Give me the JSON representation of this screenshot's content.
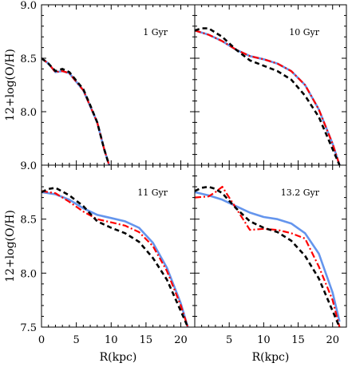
{
  "chart_data": [
    {
      "type": "line",
      "panel_label": "1 Gyr",
      "xlim": [
        0,
        22
      ],
      "ylim": [
        7.5,
        9.0
      ],
      "ylabel": "12+log(O/H)",
      "ytick_labels": [
        "9.0",
        "8.5",
        "8.0"
      ],
      "series": [
        {
          "style": "solid",
          "color": "#6495ed",
          "x": [
            0,
            1,
            2,
            3,
            4,
            5,
            6,
            7,
            8,
            9,
            9.7
          ],
          "y": [
            8.5,
            8.45,
            8.37,
            8.38,
            8.36,
            8.28,
            8.2,
            8.05,
            7.9,
            7.65,
            7.5
          ]
        },
        {
          "style": "dashdot",
          "color": "#ff0000",
          "x": [
            0,
            1,
            2,
            3,
            4,
            5,
            6,
            7,
            8,
            9,
            9.7
          ],
          "y": [
            8.5,
            8.45,
            8.37,
            8.38,
            8.36,
            8.28,
            8.2,
            8.05,
            7.9,
            7.65,
            7.5
          ]
        },
        {
          "style": "dashed",
          "color": "#000000",
          "x": [
            0,
            1,
            2,
            3,
            4,
            5,
            6,
            7,
            8,
            9,
            9.7
          ],
          "y": [
            8.5,
            8.45,
            8.38,
            8.4,
            8.37,
            8.29,
            8.21,
            8.06,
            7.9,
            7.65,
            7.5
          ]
        }
      ]
    },
    {
      "type": "line",
      "panel_label": "10 Gyr",
      "xlim": [
        0,
        22
      ],
      "ylim": [
        7.5,
        9.0
      ],
      "series": [
        {
          "style": "solid",
          "color": "#6495ed",
          "x": [
            0,
            2,
            4,
            6,
            8,
            10,
            12,
            14,
            16,
            18,
            20,
            21
          ],
          "y": [
            8.76,
            8.72,
            8.66,
            8.58,
            8.52,
            8.49,
            8.45,
            8.38,
            8.25,
            8.02,
            7.7,
            7.5
          ]
        },
        {
          "style": "dashdot",
          "color": "#ff0000",
          "x": [
            0,
            2,
            4,
            6,
            8,
            10,
            12,
            14,
            16,
            18,
            20,
            21
          ],
          "y": [
            8.76,
            8.72,
            8.66,
            8.58,
            8.52,
            8.49,
            8.45,
            8.38,
            8.25,
            8.02,
            7.7,
            7.5
          ]
        },
        {
          "style": "dashed",
          "color": "#000000",
          "x": [
            0,
            1,
            2,
            4,
            6,
            8,
            10,
            12,
            14,
            16,
            18,
            20,
            21
          ],
          "y": [
            8.76,
            8.78,
            8.78,
            8.7,
            8.58,
            8.48,
            8.43,
            8.38,
            8.3,
            8.15,
            7.95,
            7.65,
            7.5
          ]
        }
      ]
    },
    {
      "type": "line",
      "panel_label": "11 Gyr",
      "xlim": [
        0,
        22
      ],
      "ylim": [
        7.5,
        9.0
      ],
      "xlabel": "R(kpc)",
      "ylabel": "12+log(O/H)",
      "xtick_labels": [
        "0",
        "5",
        "10",
        "15",
        "20"
      ],
      "ytick_labels": [
        "9.0",
        "8.5",
        "8.0",
        "7.5"
      ],
      "series": [
        {
          "style": "solid",
          "color": "#6495ed",
          "x": [
            0,
            2,
            4,
            6,
            8,
            10,
            12,
            14,
            16,
            18,
            20,
            21
          ],
          "y": [
            8.75,
            8.73,
            8.68,
            8.6,
            8.54,
            8.51,
            8.48,
            8.42,
            8.28,
            8.05,
            7.72,
            7.5
          ]
        },
        {
          "style": "dashdot",
          "color": "#ff0000",
          "x": [
            0,
            2,
            4,
            6,
            8,
            10,
            12,
            14,
            16,
            18,
            20,
            21
          ],
          "y": [
            8.76,
            8.74,
            8.66,
            8.57,
            8.5,
            8.47,
            8.44,
            8.38,
            8.25,
            8.02,
            7.7,
            7.5
          ]
        },
        {
          "style": "dashed",
          "color": "#000000",
          "x": [
            0,
            1,
            2,
            4,
            6,
            7,
            8,
            10,
            12,
            14,
            16,
            18,
            20,
            21
          ],
          "y": [
            8.75,
            8.78,
            8.79,
            8.72,
            8.62,
            8.55,
            8.48,
            8.42,
            8.37,
            8.29,
            8.14,
            7.94,
            7.65,
            7.5
          ]
        }
      ]
    },
    {
      "type": "line",
      "panel_label": "13.2 Gyr",
      "xlim": [
        0,
        22
      ],
      "ylim": [
        7.5,
        9.0
      ],
      "xlabel": "R(kpc)",
      "xtick_labels": [
        "5",
        "10",
        "15",
        "20"
      ],
      "series": [
        {
          "style": "solid",
          "color": "#6495ed",
          "x": [
            0,
            2,
            4,
            6,
            8,
            10,
            12,
            14,
            16,
            18,
            20,
            21
          ],
          "y": [
            8.75,
            8.72,
            8.68,
            8.62,
            8.56,
            8.52,
            8.5,
            8.46,
            8.37,
            8.18,
            7.82,
            7.55
          ]
        },
        {
          "style": "dashdot",
          "color": "#ff0000",
          "x": [
            0,
            2,
            3,
            4,
            6,
            7,
            8,
            10,
            12,
            14,
            16,
            18,
            20,
            21
          ],
          "y": [
            8.7,
            8.71,
            8.75,
            8.8,
            8.6,
            8.5,
            8.4,
            8.41,
            8.4,
            8.37,
            8.32,
            8.06,
            7.75,
            7.5
          ]
        },
        {
          "style": "dashed",
          "color": "#000000",
          "x": [
            0,
            1,
            2,
            3,
            4,
            6,
            8,
            10,
            12,
            14,
            16,
            18,
            20,
            21
          ],
          "y": [
            8.76,
            8.79,
            8.8,
            8.78,
            8.74,
            8.6,
            8.48,
            8.42,
            8.38,
            8.3,
            8.16,
            7.95,
            7.65,
            7.5
          ]
        }
      ]
    }
  ]
}
